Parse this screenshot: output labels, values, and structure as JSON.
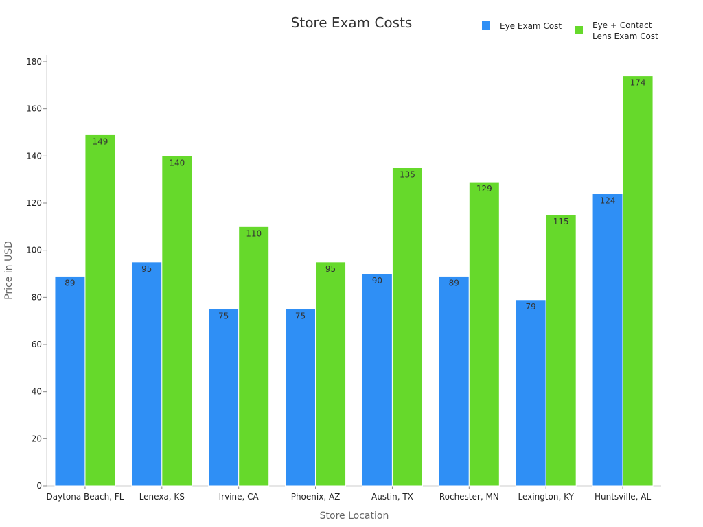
{
  "chart_data": {
    "type": "bar",
    "title": "Store Exam Costs",
    "xlabel": "Store Location",
    "ylabel": "Price in USD",
    "categories": [
      "Daytona Beach, FL",
      "Lenexa, KS",
      "Irvine, CA",
      "Phoenix, AZ",
      "Austin, TX",
      "Rochester, MN",
      "Lexington, KY",
      "Huntsville, AL"
    ],
    "series": [
      {
        "name": "Eye Exam Cost",
        "color": "#2f8ff5",
        "values": [
          89,
          95,
          75,
          75,
          90,
          89,
          79,
          124
        ]
      },
      {
        "name": "Eye + Contact Lens Exam Cost",
        "legend_lines": [
          "Eye + Contact",
          "Lens Exam Cost"
        ],
        "color": "#66d92b",
        "values": [
          149,
          140,
          110,
          95,
          135,
          129,
          115,
          174
        ]
      }
    ],
    "ylim": [
      0,
      180
    ],
    "yticks": [
      0,
      20,
      40,
      60,
      80,
      100,
      120,
      140,
      160,
      180
    ],
    "grid": false,
    "legend_position": "top-right"
  }
}
